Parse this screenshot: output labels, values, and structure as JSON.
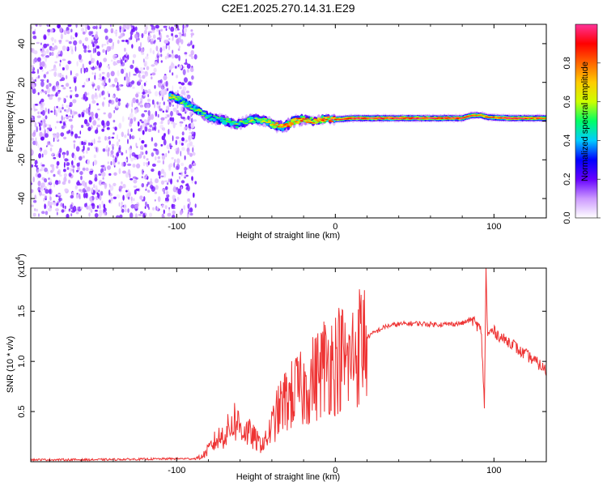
{
  "title": "C2E1.2025.270.14.31.E29",
  "chart_data": [
    {
      "type": "heatmap",
      "name": "spectrogram",
      "xlabel": "Height of straight line (km)",
      "ylabel": "Frequency (Hz)",
      "xlim": [
        -192,
        133
      ],
      "ylim": [
        -50,
        50
      ],
      "xticks": [
        -100,
        0,
        100
      ],
      "yticks": [
        -40,
        -20,
        0,
        20,
        40
      ],
      "ytick_labels": [
        "-40",
        "-20",
        "0",
        "20",
        "40"
      ],
      "noise_region_x": [
        -192,
        -88
      ],
      "ridge": {
        "x": [
          -104,
          -98,
          -92,
          -86,
          -80,
          -74,
          -68,
          -62,
          -56,
          -50,
          -44,
          -38,
          -32,
          -26,
          -20,
          -14,
          -8,
          -2,
          4,
          10,
          20,
          40,
          60,
          80,
          86,
          92,
          96,
          110,
          133
        ],
        "freq_hz": [
          13,
          11,
          8,
          5,
          2,
          1,
          0,
          -2,
          0,
          1,
          0,
          -2,
          -3,
          0,
          1,
          0,
          1,
          1,
          1,
          1.5,
          1.5,
          1.5,
          1.5,
          1.5,
          3,
          3,
          2,
          1.5,
          1.5
        ],
        "amplitude": [
          0.7,
          0.6,
          0.55,
          0.6,
          0.55,
          0.5,
          0.6,
          0.55,
          0.6,
          0.6,
          0.65,
          0.75,
          0.9,
          0.85,
          0.9,
          0.85,
          0.9,
          0.95,
          0.95,
          1.0,
          1.0,
          1.0,
          1.0,
          0.95,
          0.9,
          0.8,
          0.85,
          1.0,
          0.9
        ]
      },
      "colorbar": {
        "label": "Normalized spectral amplitude",
        "range": [
          0,
          1
        ],
        "ticks": [
          0.0,
          0.2,
          0.4,
          0.6,
          0.8
        ],
        "tick_labels": [
          "0.0",
          "0.2",
          "0.4",
          "0.6",
          "0.8"
        ],
        "colors": [
          "#ffffff",
          "#cc99ff",
          "#6600ff",
          "#0000ff",
          "#00ccff",
          "#00ff66",
          "#ccff00",
          "#ffcc00",
          "#ff6600",
          "#ff0000",
          "#ff3399"
        ]
      }
    },
    {
      "type": "line",
      "name": "snr",
      "xlabel": "Height of straight line (km)",
      "ylabel": "SNR (10 * v/v)",
      "scale_label": "(x10",
      "scale_exp": "4",
      "xlim": [
        -192,
        133
      ],
      "ylim": [
        0,
        1.93
      ],
      "xticks": [
        -100,
        0,
        100
      ],
      "yticks": [
        0.5,
        1.0,
        1.5
      ],
      "ytick_labels": [
        "0.5",
        "1.0",
        "1.5"
      ],
      "line_color": "#ee3333",
      "series": [
        {
          "name": "SNR",
          "x": [
            -192,
            -150,
            -100,
            -88,
            -84,
            -80,
            -76,
            -72,
            -68,
            -64,
            -60,
            -56,
            -52,
            -48,
            -44,
            -40,
            -36,
            -32,
            -28,
            -24,
            -20,
            -16,
            -12,
            -8,
            -4,
            0,
            4,
            8,
            12,
            16,
            20,
            26,
            32,
            40,
            50,
            60,
            70,
            80,
            86,
            90,
            92,
            94,
            95,
            96,
            98,
            100,
            106,
            112,
            116,
            120,
            126,
            130,
            133
          ],
          "y": [
            0.02,
            0.02,
            0.03,
            0.03,
            0.05,
            0.12,
            0.2,
            0.25,
            0.3,
            0.42,
            0.35,
            0.3,
            0.25,
            0.18,
            0.2,
            0.35,
            0.5,
            0.6,
            0.65,
            0.72,
            0.7,
            0.8,
            0.85,
            0.95,
            1.0,
            1.0,
            1.05,
            0.95,
            1.1,
            1.18,
            1.24,
            1.3,
            1.35,
            1.37,
            1.38,
            1.37,
            1.37,
            1.38,
            1.42,
            1.35,
            1.3,
            0.55,
            1.93,
            1.25,
            1.3,
            1.3,
            1.22,
            1.18,
            1.1,
            1.07,
            1.0,
            0.95,
            0.9
          ]
        }
      ]
    }
  ]
}
